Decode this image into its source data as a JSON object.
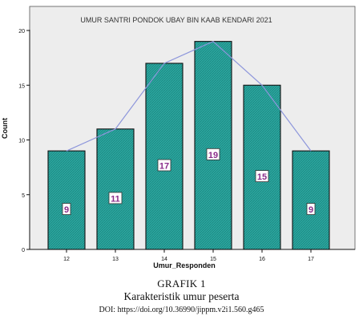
{
  "chart_data": {
    "type": "bar",
    "title": "UMUR SANTRI PONDOK UBAY BIN KAAB KENDARI 2021",
    "xlabel": "Umur_Responden",
    "ylabel": "Count",
    "categories": [
      "12",
      "13",
      "14",
      "15",
      "16",
      "17"
    ],
    "values": [
      9,
      11,
      17,
      19,
      15,
      9
    ],
    "data_labels": [
      "9",
      "11",
      "17",
      "19",
      "15",
      "9"
    ],
    "ylim": [
      0,
      20
    ],
    "yticks": [
      "0",
      "5",
      "10",
      "15",
      "20"
    ],
    "overlay_line": true,
    "grid": false,
    "colors": {
      "plot_background": "#ededed",
      "bar_fill": "#2aa7a0",
      "bar_hatch": "#1c7f79",
      "bar_edge": "#111111",
      "line": "#8d96db",
      "label_text": "#8a2d8a"
    }
  },
  "caption": {
    "label": "GRAFIK 1",
    "title": "Karakteristik umur peserta",
    "doi": "DOI: https://doi.org/10.36990/jippm.v2i1.560.g465"
  }
}
